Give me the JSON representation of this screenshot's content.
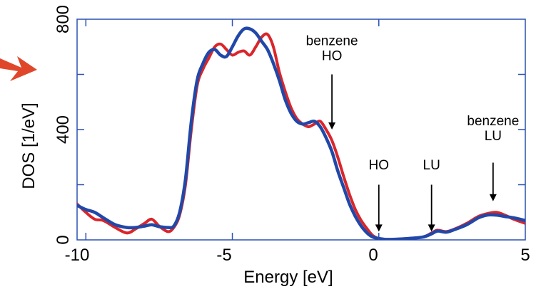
{
  "chart_data": {
    "type": "line",
    "xlabel": "Energy [eV]",
    "ylabel": "DOS [1/eV]",
    "xlim": [
      -10.3,
      5
    ],
    "ylim": [
      0,
      800
    ],
    "xticks": [
      "-10",
      "-5",
      "0",
      "5"
    ],
    "yticks": [
      "0",
      "400",
      "800"
    ],
    "grid": false,
    "colors": {
      "series_red": "#d9262b",
      "series_blue": "#2148a8",
      "arrow": "#e0472a",
      "frame": "#2a50b0"
    },
    "series": [
      {
        "color": "#d9262b",
        "x": [
          -10.3,
          -10.0,
          -9.7,
          -9.4,
          -9.0,
          -8.6,
          -8.3,
          -8.0,
          -7.75,
          -7.5,
          -7.2,
          -7.0,
          -6.8,
          -6.6,
          -6.4,
          -6.2,
          -6.0,
          -5.8,
          -5.6,
          -5.4,
          -5.2,
          -5.0,
          -4.8,
          -4.6,
          -4.4,
          -4.2,
          -4.0,
          -3.8,
          -3.6,
          -3.4,
          -3.2,
          -3.0,
          -2.8,
          -2.6,
          -2.4,
          -2.2,
          -2.0,
          -1.8,
          -1.6,
          -1.4,
          -1.2,
          -1.0,
          -0.8,
          -0.6,
          -0.4,
          -0.2,
          0.0,
          0.2,
          0.5,
          1.0,
          1.5,
          1.8,
          2.0,
          2.3,
          2.6,
          3.0,
          3.4,
          3.7,
          4.0,
          4.3,
          4.6,
          5.0
        ],
        "values": [
          130,
          100,
          75,
          70,
          45,
          25,
          40,
          60,
          75,
          50,
          30,
          45,
          90,
          200,
          400,
          560,
          620,
          660,
          700,
          710,
          690,
          670,
          680,
          685,
          670,
          700,
          735,
          745,
          700,
          610,
          540,
          480,
          440,
          420,
          410,
          420,
          430,
          400,
          360,
          300,
          230,
          165,
          110,
          70,
          40,
          15,
          5,
          2,
          2,
          5,
          10,
          25,
          35,
          30,
          40,
          60,
          85,
          95,
          100,
          90,
          75,
          60
        ]
      },
      {
        "color": "#2148a8",
        "x": [
          -10.3,
          -10.0,
          -9.7,
          -9.4,
          -9.0,
          -8.6,
          -8.3,
          -8.0,
          -7.75,
          -7.5,
          -7.2,
          -7.0,
          -6.8,
          -6.6,
          -6.4,
          -6.2,
          -6.0,
          -5.8,
          -5.6,
          -5.4,
          -5.2,
          -5.0,
          -4.8,
          -4.6,
          -4.4,
          -4.2,
          -4.0,
          -3.8,
          -3.6,
          -3.4,
          -3.2,
          -3.0,
          -2.8,
          -2.6,
          -2.4,
          -2.2,
          -2.0,
          -1.8,
          -1.6,
          -1.4,
          -1.2,
          -1.0,
          -0.8,
          -0.6,
          -0.4,
          -0.2,
          0.0,
          0.2,
          0.5,
          1.0,
          1.5,
          1.8,
          2.0,
          2.3,
          2.6,
          3.0,
          3.4,
          3.7,
          4.0,
          4.3,
          4.6,
          5.0
        ],
        "values": [
          125,
          110,
          100,
          80,
          55,
          45,
          45,
          50,
          55,
          48,
          45,
          50,
          100,
          220,
          430,
          580,
          640,
          680,
          690,
          670,
          665,
          700,
          740,
          765,
          765,
          750,
          720,
          690,
          640,
          580,
          510,
          460,
          430,
          420,
          425,
          430,
          410,
          370,
          320,
          250,
          190,
          130,
          85,
          50,
          25,
          10,
          5,
          2,
          2,
          5,
          10,
          22,
          32,
          28,
          38,
          55,
          80,
          90,
          90,
          85,
          80,
          70
        ]
      }
    ],
    "annotations": [
      {
        "lines": [
          "benzene",
          "HO"
        ],
        "x": -1.6,
        "arrow_tip": 400,
        "arrow_base": 600,
        "label_top": 750
      },
      {
        "lines": [
          "HO"
        ],
        "x": 0.0,
        "arrow_tip": 30,
        "arrow_base": 200,
        "label_top": 300
      },
      {
        "lines": [
          "LU"
        ],
        "x": 1.8,
        "arrow_tip": 30,
        "arrow_base": 200,
        "label_top": 300
      },
      {
        "lines": [
          "benzene",
          "LU"
        ],
        "x": 3.9,
        "arrow_tip": 140,
        "arrow_base": 280,
        "label_top": 460
      }
    ]
  }
}
